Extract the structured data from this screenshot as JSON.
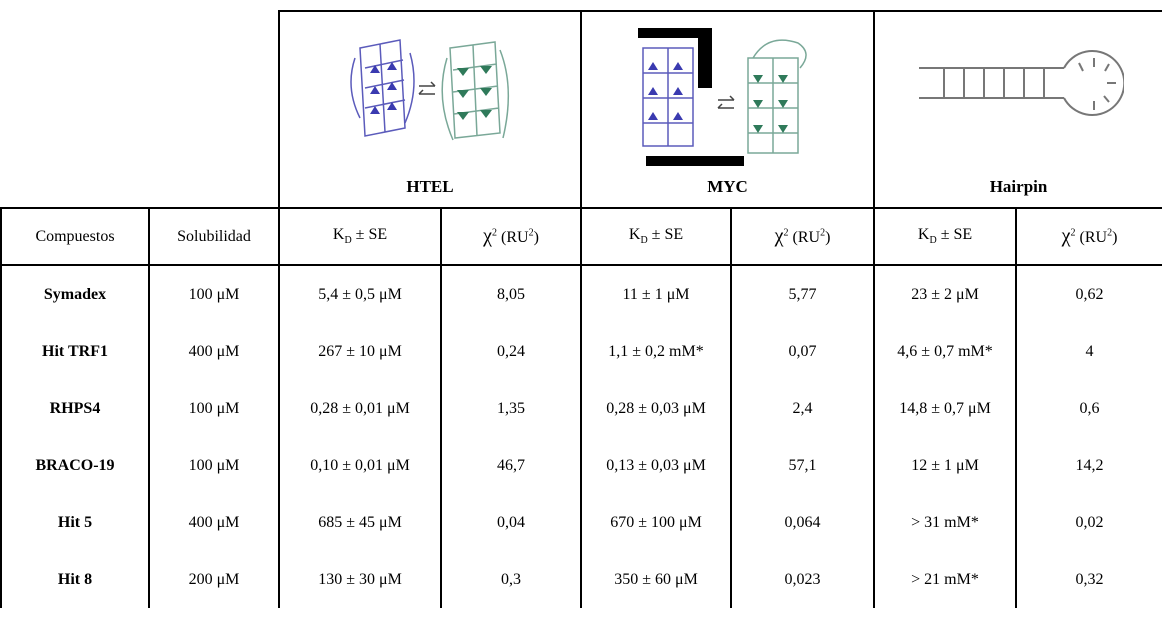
{
  "groups": [
    "HTEL",
    "MYC",
    "Hairpin"
  ],
  "columns": [
    [
      {
        "text": "Compuestos"
      }
    ],
    [
      {
        "text": "Solubilidad"
      }
    ],
    [
      {
        "text": "K"
      },
      {
        "text": "D",
        "sub": true
      },
      {
        "text": " ± SE"
      }
    ],
    [
      {
        "text": "χ",
        "big": true
      },
      {
        "text": "2",
        "sup": true
      },
      {
        "text": " (RU"
      },
      {
        "text": "2",
        "sup": true
      },
      {
        "text": ")"
      }
    ],
    [
      {
        "text": "K"
      },
      {
        "text": "D",
        "sub": true
      },
      {
        "text": " ± SE"
      }
    ],
    [
      {
        "text": "χ",
        "big": true
      },
      {
        "text": "2",
        "sup": true
      },
      {
        "text": " (RU"
      },
      {
        "text": "2",
        "sup": true
      },
      {
        "text": ")"
      }
    ],
    [
      {
        "text": "K"
      },
      {
        "text": "D",
        "sub": true
      },
      {
        "text": " ± SE"
      }
    ],
    [
      {
        "text": "χ",
        "big": true
      },
      {
        "text": "2",
        "sup": true
      },
      {
        "text": " (RU"
      },
      {
        "text": "2",
        "sup": true
      },
      {
        "text": ")"
      }
    ]
  ],
  "rows": [
    [
      "Symadex",
      "100 μM",
      "5,4 ± 0,5 μM",
      "8,05",
      "11 ± 1 μM",
      "5,77",
      "23 ± 2 μM",
      "0,62"
    ],
    [
      "Hit TRF1",
      "400 μM",
      "267 ± 10 μM",
      "0,24",
      "1,1 ± 0,2 mM*",
      "0,07",
      "4,6 ± 0,7 mM*",
      "4"
    ],
    [
      "RHPS4",
      "100 μM",
      "0,28 ± 0,01 μM",
      "1,35",
      "0,28 ± 0,03 μM",
      "2,4",
      "14,8 ± 0,7  μM",
      "0,6"
    ],
    [
      "BRACO-19",
      "100 μM",
      "0,10 ± 0,01 μM",
      "46,7",
      "0,13 ± 0,03 μM",
      "57,1",
      "12 ± 1 μM",
      "14,2"
    ],
    [
      "Hit 5",
      "400 μM",
      "685 ± 45 μM",
      "0,04",
      "670 ± 100 μM",
      "0,064",
      "> 31 mM*",
      "0,02"
    ],
    [
      "Hit 8",
      "200 μM",
      "130 ± 30 μM",
      "0,3",
      "350 ± 60  μM",
      "0,023",
      "> 21 mM*",
      "0,32"
    ]
  ]
}
